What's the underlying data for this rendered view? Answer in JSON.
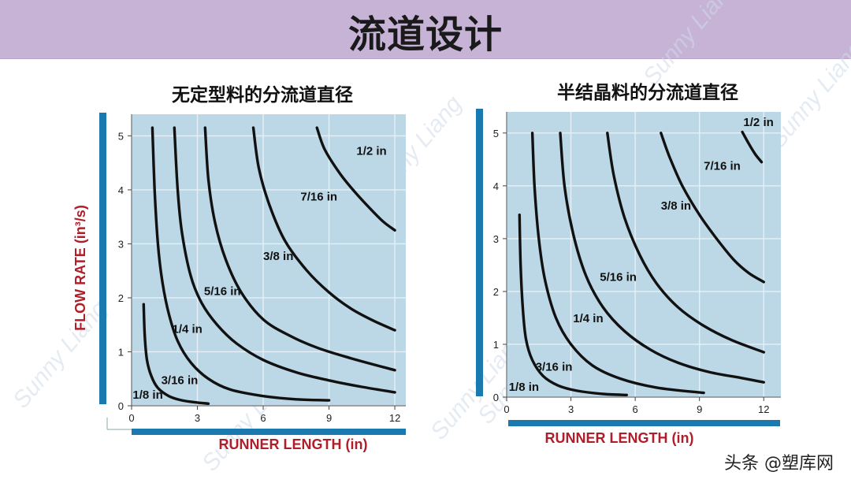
{
  "header": {
    "title": "流道设计"
  },
  "footer": {
    "text": "头条 @塑库网"
  },
  "watermark": "Sunny Liang",
  "colors": {
    "header_bg": "#c6b3d6",
    "plot_bg": "#bcd8e6",
    "axis_bar": "#1a7ab0",
    "label_red": "#b01e2a",
    "curve": "#111111"
  },
  "chart_data": [
    {
      "type": "line",
      "title": "无定型料的分流道直径",
      "xlabel": "RUNNER LENGTH (in)",
      "ylabel": "FLOW RATE (in³/s)",
      "xlim": [
        0,
        12.5
      ],
      "ylim": [
        0,
        5.4
      ],
      "xticks": [
        0,
        3,
        6,
        9,
        12
      ],
      "yticks": [
        0,
        1,
        2,
        3,
        4,
        5
      ],
      "grid": true,
      "series": [
        {
          "name": "1/8 in",
          "label_at": [
            0.05,
            0.13
          ],
          "points": [
            [
              0.55,
              1.88
            ],
            [
              0.6,
              1.3
            ],
            [
              0.7,
              0.85
            ],
            [
              0.9,
              0.55
            ],
            [
              1.2,
              0.33
            ],
            [
              1.7,
              0.18
            ],
            [
              2.3,
              0.1
            ],
            [
              3.0,
              0.06
            ],
            [
              3.5,
              0.04
            ]
          ]
        },
        {
          "name": "3/16 in",
          "label_at": [
            1.35,
            0.4
          ],
          "points": [
            [
              0.95,
              5.15
            ],
            [
              1.05,
              4.0
            ],
            [
              1.2,
              3.0
            ],
            [
              1.4,
              2.3
            ],
            [
              1.7,
              1.7
            ],
            [
              2.1,
              1.2
            ],
            [
              2.7,
              0.8
            ],
            [
              3.5,
              0.5
            ],
            [
              4.5,
              0.3
            ],
            [
              6.0,
              0.18
            ],
            [
              7.5,
              0.12
            ],
            [
              9.0,
              0.1
            ]
          ]
        },
        {
          "name": "1/4 in",
          "label_at": [
            1.85,
            1.35
          ],
          "points": [
            [
              1.95,
              5.15
            ],
            [
              2.1,
              4.0
            ],
            [
              2.3,
              3.2
            ],
            [
              2.7,
              2.4
            ],
            [
              3.2,
              1.9
            ],
            [
              3.9,
              1.5
            ],
            [
              4.8,
              1.15
            ],
            [
              6.0,
              0.85
            ],
            [
              7.5,
              0.62
            ],
            [
              9.0,
              0.47
            ],
            [
              10.5,
              0.35
            ],
            [
              12.0,
              0.25
            ]
          ]
        },
        {
          "name": "5/16 in",
          "label_at": [
            3.3,
            2.05
          ],
          "points": [
            [
              3.35,
              5.15
            ],
            [
              3.5,
              4.2
            ],
            [
              3.8,
              3.4
            ],
            [
              4.3,
              2.7
            ],
            [
              5.0,
              2.1
            ],
            [
              6.0,
              1.6
            ],
            [
              7.2,
              1.3
            ],
            [
              8.5,
              1.07
            ],
            [
              10.0,
              0.88
            ],
            [
              12.0,
              0.66
            ]
          ]
        },
        {
          "name": "3/8 in",
          "label_at": [
            6.0,
            2.7
          ],
          "points": [
            [
              5.55,
              5.15
            ],
            [
              5.8,
              4.4
            ],
            [
              6.3,
              3.7
            ],
            [
              7.0,
              3.05
            ],
            [
              8.0,
              2.5
            ],
            [
              9.0,
              2.1
            ],
            [
              10.0,
              1.8
            ],
            [
              11.0,
              1.58
            ],
            [
              12.0,
              1.4
            ]
          ]
        },
        {
          "name": "7/16 in",
          "label_at": [
            7.7,
            3.8
          ],
          "points": [
            [
              8.45,
              5.15
            ],
            [
              8.8,
              4.75
            ],
            [
              9.5,
              4.3
            ],
            [
              10.2,
              3.95
            ],
            [
              11.0,
              3.6
            ],
            [
              11.5,
              3.4
            ],
            [
              12.0,
              3.25
            ]
          ]
        },
        {
          "name": "1/2 in",
          "label_at": [
            10.25,
            4.65
          ],
          "points": []
        }
      ]
    },
    {
      "type": "line",
      "title": "半结晶料的分流道直径",
      "xlabel": "RUNNER LENGTH (in)",
      "ylabel": "",
      "xlim": [
        0,
        12.8
      ],
      "ylim": [
        0,
        5.4
      ],
      "xticks": [
        0,
        3,
        6,
        9,
        12
      ],
      "yticks": [
        0,
        1,
        2,
        3,
        4,
        5
      ],
      "grid": true,
      "series": [
        {
          "name": "1/8 in",
          "label_at": [
            0.1,
            0.12
          ],
          "points": [
            [
              0.6,
              3.45
            ],
            [
              0.65,
              2.5
            ],
            [
              0.75,
              1.7
            ],
            [
              0.9,
              1.1
            ],
            [
              1.2,
              0.7
            ],
            [
              1.7,
              0.4
            ],
            [
              2.4,
              0.22
            ],
            [
              3.3,
              0.12
            ],
            [
              4.5,
              0.06
            ],
            [
              5.6,
              0.04
            ]
          ]
        },
        {
          "name": "3/16 in",
          "label_at": [
            1.35,
            0.5
          ],
          "points": [
            [
              1.2,
              5.0
            ],
            [
              1.3,
              4.0
            ],
            [
              1.5,
              3.0
            ],
            [
              1.8,
              2.2
            ],
            [
              2.3,
              1.5
            ],
            [
              3.0,
              1.0
            ],
            [
              4.0,
              0.6
            ],
            [
              5.3,
              0.35
            ],
            [
              7.0,
              0.18
            ],
            [
              9.2,
              0.08
            ]
          ]
        },
        {
          "name": "1/4 in",
          "label_at": [
            3.1,
            1.42
          ],
          "points": [
            [
              2.5,
              5.0
            ],
            [
              2.7,
              4.0
            ],
            [
              3.1,
              3.1
            ],
            [
              3.7,
              2.3
            ],
            [
              4.5,
              1.7
            ],
            [
              5.5,
              1.25
            ],
            [
              6.7,
              0.9
            ],
            [
              8.0,
              0.65
            ],
            [
              9.5,
              0.47
            ],
            [
              11.0,
              0.36
            ],
            [
              12.0,
              0.28
            ]
          ]
        },
        {
          "name": "5/16 in",
          "label_at": [
            4.35,
            2.2
          ],
          "points": [
            [
              4.7,
              5.0
            ],
            [
              5.0,
              4.2
            ],
            [
              5.5,
              3.4
            ],
            [
              6.2,
              2.7
            ],
            [
              7.0,
              2.15
            ],
            [
              8.0,
              1.7
            ],
            [
              9.2,
              1.35
            ],
            [
              10.5,
              1.08
            ],
            [
              12.0,
              0.85
            ]
          ]
        },
        {
          "name": "3/8 in",
          "label_at": [
            7.2,
            3.55
          ],
          "points": [
            [
              7.2,
              5.0
            ],
            [
              7.6,
              4.55
            ],
            [
              8.2,
              4.0
            ],
            [
              9.0,
              3.45
            ],
            [
              9.8,
              3.0
            ],
            [
              10.6,
              2.6
            ],
            [
              11.3,
              2.35
            ],
            [
              12.0,
              2.18
            ]
          ]
        },
        {
          "name": "7/16 in",
          "label_at": [
            9.2,
            4.3
          ],
          "points": []
        },
        {
          "name": "1/2 in",
          "label_at": [
            11.05,
            5.13
          ],
          "points": [
            [
              11.0,
              5.02
            ],
            [
              11.3,
              4.8
            ],
            [
              11.6,
              4.6
            ],
            [
              11.9,
              4.45
            ]
          ]
        }
      ]
    }
  ]
}
